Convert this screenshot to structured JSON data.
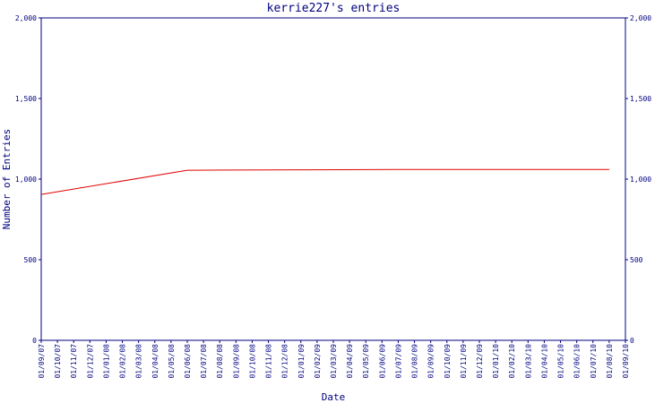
{
  "chart_data": {
    "type": "line",
    "title": "kerrie227's entries",
    "xlabel": "Date",
    "ylabel": "Number of Entries",
    "ylim": [
      0,
      2000
    ],
    "y_ticks": [
      "0",
      "500",
      "1,000",
      "1,500",
      "2,000"
    ],
    "y_tick_values": [
      0,
      500,
      1000,
      1500,
      2000
    ],
    "categories": [
      "01/09/07",
      "01/10/07",
      "01/11/07",
      "01/12/07",
      "01/01/08",
      "01/02/08",
      "01/03/08",
      "01/04/08",
      "01/05/08",
      "01/06/08",
      "01/07/08",
      "01/08/08",
      "01/09/08",
      "01/10/08",
      "01/11/08",
      "01/12/08",
      "01/01/09",
      "01/02/09",
      "01/03/09",
      "01/04/09",
      "01/05/09",
      "01/06/09",
      "01/07/09",
      "01/08/09",
      "01/09/09",
      "01/10/09",
      "01/11/09",
      "01/12/09",
      "01/01/10",
      "01/02/10",
      "01/03/10",
      "01/04/10",
      "01/05/10",
      "01/06/10",
      "01/07/10",
      "01/08/10",
      "01/09/10"
    ],
    "series": [
      {
        "x": [
          "01/09/07",
          "01/06/08",
          "01/07/09",
          "01/08/10"
        ],
        "values": [
          905,
          1055,
          1060,
          1060
        ]
      }
    ],
    "grid": false,
    "colors": {
      "axis": "#000080",
      "line": "#e00000",
      "background": "#ffffff"
    }
  }
}
